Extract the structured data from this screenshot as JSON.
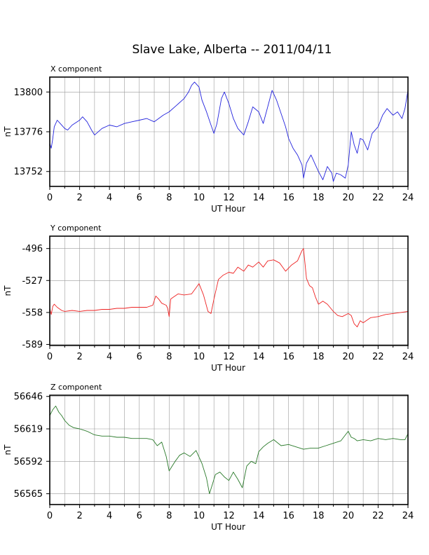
{
  "chart_data": {
    "title": "Slave Lake, Alberta -- 2011/04/11",
    "type": "line",
    "panels": [
      {
        "label": "X component",
        "ylabel": "nT",
        "xlabel": "UT Hour",
        "x_ticks": [
          0,
          2,
          4,
          6,
          8,
          10,
          12,
          14,
          16,
          18,
          20,
          22,
          24
        ],
        "y_ticks": [
          13752,
          13776,
          13800
        ],
        "xlim": [
          0,
          24
        ],
        "ylim": [
          13743,
          13809
        ],
        "color": "#2222dd",
        "series": [
          {
            "x": [
              0,
              0.1,
              0.2,
              0.3,
              0.5,
              0.7,
              1.0,
              1.2,
              1.5,
              2.0,
              2.2,
              2.5,
              2.8,
              3.0,
              3.5,
              4.0,
              4.5,
              5.0,
              5.5,
              6.0,
              6.5,
              7.0,
              7.3,
              7.6,
              8.0,
              8.5,
              9.0,
              9.3,
              9.5,
              9.7,
              10.0,
              10.2,
              10.5,
              10.8,
              11.0,
              11.2,
              11.5,
              11.7,
              12.0,
              12.3,
              12.6,
              13.0,
              13.3,
              13.6,
              14.0,
              14.3,
              14.6,
              14.9,
              15.2,
              15.5,
              15.8,
              16.0,
              16.3,
              16.6,
              16.9,
              17.0,
              17.2,
              17.5,
              17.8,
              18.0,
              18.3,
              18.6,
              18.9,
              19.0,
              19.2,
              19.5,
              19.8,
              20.0,
              20.2,
              20.4,
              20.6,
              20.8,
              21.0,
              21.3,
              21.6,
              22.0,
              22.3,
              22.6,
              23.0,
              23.3,
              23.6,
              23.8,
              24.0
            ],
            "y": [
              13769,
              13766,
              13772,
              13779,
              13783,
              13781,
              13778,
              13777,
              13780,
              13783,
              13785,
              13782,
              13777,
              13774,
              13778,
              13780,
              13779,
              13781,
              13782,
              13783,
              13784,
              13782,
              13784,
              13786,
              13788,
              13792,
              13796,
              13800,
              13804,
              13806,
              13803,
              13795,
              13788,
              13780,
              13775,
              13781,
              13796,
              13800,
              13793,
              13784,
              13778,
              13774,
              13782,
              13791,
              13788,
              13781,
              13791,
              13801,
              13795,
              13787,
              13779,
              13772,
              13766,
              13762,
              13756,
              13748,
              13757,
              13762,
              13756,
              13752,
              13747,
              13755,
              13751,
              13746,
              13751,
              13750,
              13748,
              13756,
              13776,
              13768,
              13763,
              13772,
              13771,
              13765,
              13775,
              13779,
              13786,
              13790,
              13786,
              13788,
              13784,
              13790,
              13801
            ]
          }
        ]
      },
      {
        "label": "Y component",
        "ylabel": "nT",
        "xlabel": "UT Hour",
        "x_ticks": [
          0,
          2,
          4,
          6,
          8,
          10,
          12,
          14,
          16,
          18,
          20,
          22,
          24
        ],
        "y_ticks": [
          -589,
          -558,
          -527,
          -496
        ],
        "xlim": [
          0,
          24
        ],
        "ylim": [
          -590,
          -484
        ],
        "color": "#ee2222",
        "series": [
          {
            "x": [
              0,
              0.1,
              0.2,
              0.3,
              0.5,
              0.8,
              1.0,
              1.5,
              2.0,
              2.5,
              3.0,
              3.5,
              4.0,
              4.5,
              5.0,
              5.5,
              6.0,
              6.5,
              6.9,
              7.1,
              7.3,
              7.5,
              7.8,
              7.9,
              8.0,
              8.1,
              8.3,
              8.6,
              9.0,
              9.5,
              9.8,
              10.0,
              10.3,
              10.6,
              10.8,
              11.0,
              11.3,
              11.6,
              12.0,
              12.3,
              12.6,
              13.0,
              13.3,
              13.6,
              14.0,
              14.3,
              14.6,
              15.0,
              15.4,
              15.8,
              16.2,
              16.6,
              16.9,
              17.0,
              17.2,
              17.4,
              17.6,
              17.8,
              18.0,
              18.3,
              18.6,
              19.0,
              19.3,
              19.6,
              20.0,
              20.2,
              20.4,
              20.6,
              20.8,
              21.0,
              21.5,
              22.0,
              22.5,
              23.0,
              23.5,
              24.0
            ],
            "y": [
              -554,
              -560,
              -552,
              -550,
              -553,
              -556,
              -557,
              -556,
              -557,
              -556,
              -556,
              -555,
              -555,
              -554,
              -554,
              -553,
              -553,
              -553,
              -551,
              -542,
              -545,
              -549,
              -551,
              -554,
              -562,
              -545,
              -543,
              -540,
              -541,
              -540,
              -534,
              -530,
              -541,
              -557,
              -559,
              -545,
              -526,
              -522,
              -519,
              -520,
              -514,
              -518,
              -512,
              -514,
              -509,
              -514,
              -508,
              -507,
              -510,
              -518,
              -512,
              -508,
              -498,
              -496,
              -525,
              -532,
              -534,
              -543,
              -550,
              -547,
              -550,
              -557,
              -561,
              -562,
              -559,
              -561,
              -569,
              -572,
              -566,
              -568,
              -563,
              -562,
              -560,
              -559,
              -558,
              -557
            ]
          }
        ]
      },
      {
        "label": "Z component",
        "ylabel": "nT",
        "xlabel": "UT Hour",
        "x_ticks": [
          0,
          2,
          4,
          6,
          8,
          10,
          12,
          14,
          16,
          18,
          20,
          22,
          24
        ],
        "y_ticks": [
          56565,
          56592,
          56619,
          56646
        ],
        "xlim": [
          0,
          24
        ],
        "ylim": [
          56556,
          56647
        ],
        "color": "#2a7a2a",
        "series": [
          {
            "x": [
              0,
              0.2,
              0.4,
              0.6,
              0.8,
              1.0,
              1.3,
              1.6,
              2.0,
              2.5,
              3.0,
              3.5,
              4.0,
              4.5,
              5.0,
              5.5,
              6.0,
              6.5,
              6.9,
              7.2,
              7.5,
              7.8,
              8.0,
              8.2,
              8.4,
              8.7,
              9.0,
              9.4,
              9.8,
              10.2,
              10.5,
              10.7,
              10.9,
              11.1,
              11.4,
              11.7,
              12.0,
              12.3,
              12.6,
              12.9,
              13.2,
              13.5,
              13.8,
              14.0,
              14.3,
              14.6,
              15.0,
              15.5,
              16.0,
              16.5,
              17.0,
              17.5,
              18.0,
              18.5,
              19.0,
              19.5,
              20.0,
              20.2,
              20.4,
              20.6,
              21.0,
              21.5,
              22.0,
              22.5,
              23.0,
              23.5,
              23.8,
              24.0
            ],
            "y": [
              56630,
              56635,
              56638,
              56633,
              56630,
              56626,
              56622,
              56620,
              56619,
              56617,
              56614,
              56613,
              56613,
              56612,
              56612,
              56611,
              56611,
              56611,
              56610,
              56605,
              56608,
              56596,
              56584,
              56588,
              56592,
              56597,
              56599,
              56596,
              56601,
              56590,
              56578,
              56565,
              56573,
              56581,
              56583,
              56579,
              56576,
              56583,
              56577,
              56570,
              56588,
              56592,
              56590,
              56600,
              56604,
              56607,
              56610,
              56605,
              56606,
              56604,
              56602,
              56603,
              56603,
              56605,
              56607,
              56609,
              56617,
              56612,
              56611,
              56609,
              56610,
              56609,
              56611,
              56610,
              56611,
              56610,
              56610,
              56615
            ]
          }
        ]
      }
    ]
  }
}
